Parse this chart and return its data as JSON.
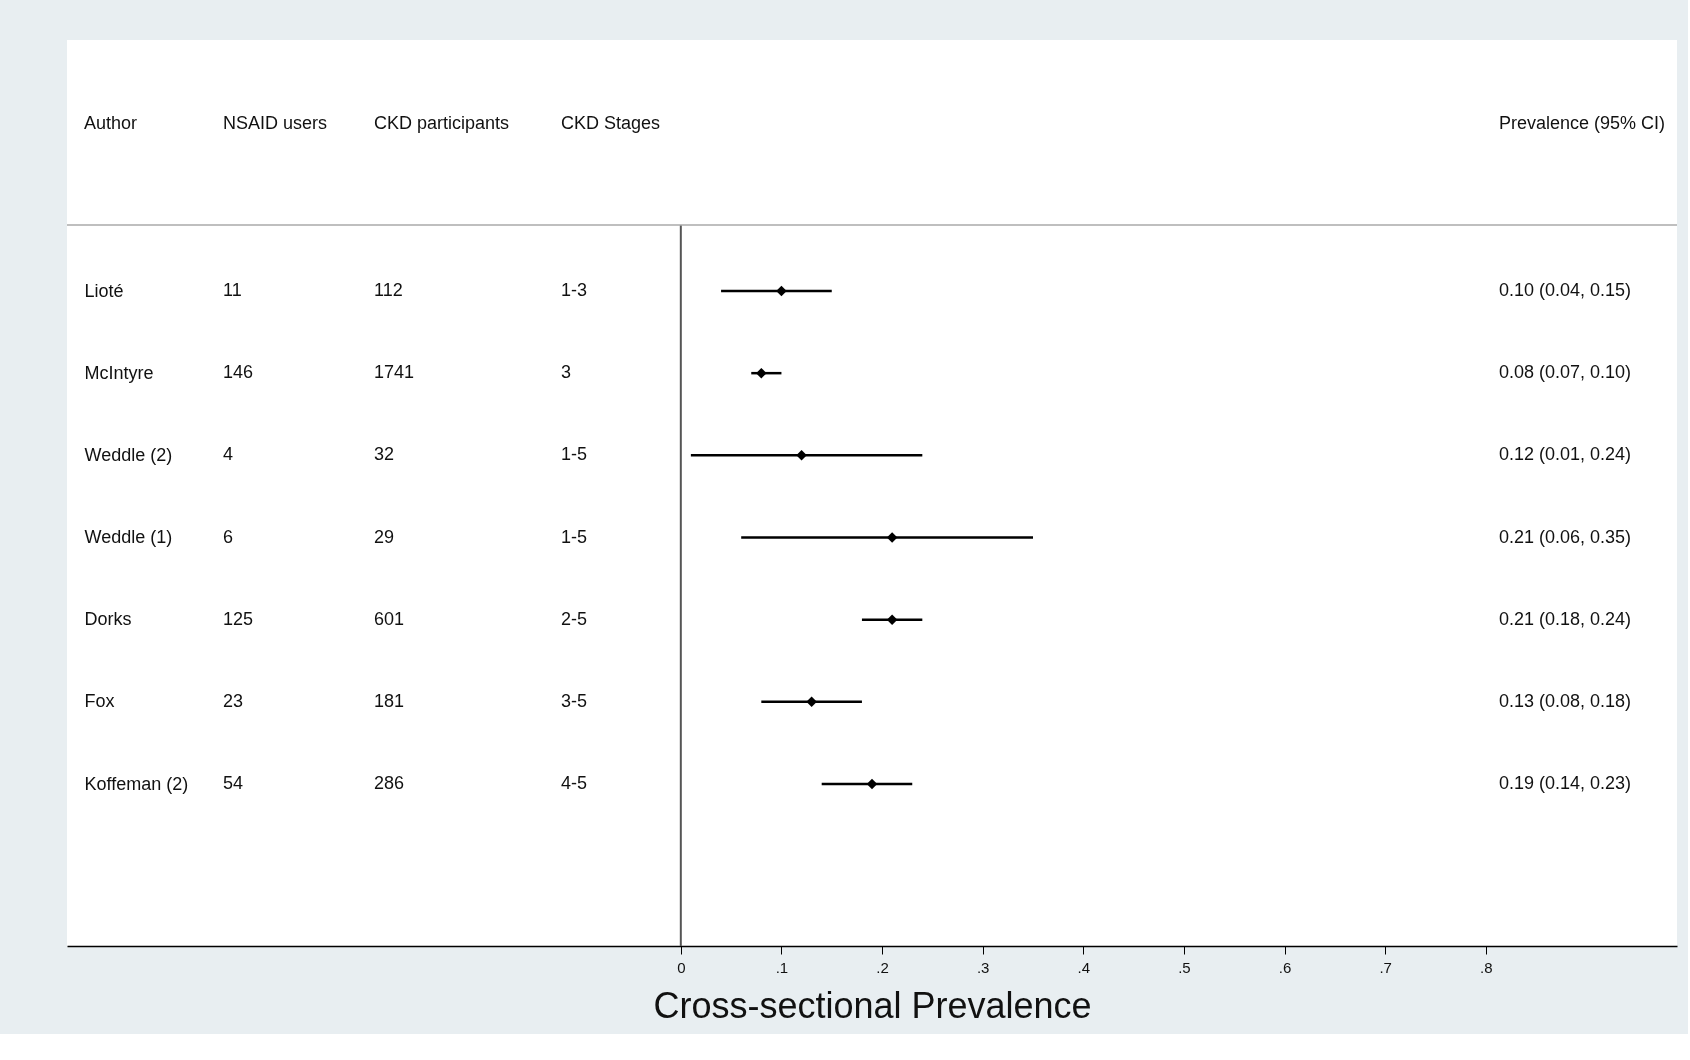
{
  "chart_data": {
    "type": "scatter",
    "orientation": "horizontal",
    "xlabel": "Cross-sectional Prevalence",
    "categories": [
      "Lioté",
      "McIntyre",
      "Weddle (2)",
      "Weddle (1)",
      "Dorks",
      "Fox",
      "Koffeman (2)"
    ],
    "values": [
      0.1,
      0.08,
      0.12,
      0.21,
      0.21,
      0.13,
      0.19
    ],
    "errors": [
      [
        0.04,
        0.15
      ],
      [
        0.07,
        0.1
      ],
      [
        0.01,
        0.24
      ],
      [
        0.06,
        0.35
      ],
      [
        0.18,
        0.24
      ],
      [
        0.08,
        0.18
      ],
      [
        0.14,
        0.23
      ]
    ],
    "color": "#000000",
    "marker": "diamond",
    "xlim": [
      -0.61,
      0.99
    ],
    "xticks": [
      0,
      {
        "value": 0.1,
        "label": ".1"
      },
      {
        "value": 0.2,
        "label": ".2"
      },
      {
        "value": 0.3,
        "label": ".3"
      },
      {
        "value": 0.4,
        "label": ".4"
      },
      {
        "value": 0.5,
        "label": ".5"
      },
      {
        "value": 0.6,
        "label": ".6"
      },
      {
        "value": 0.7,
        "label": ".7"
      },
      {
        "value": 0.8,
        "label": ".8"
      }
    ],
    "ref_lines": [
      {
        "axis": "x",
        "value": 0,
        "color": "#555555"
      }
    ],
    "annotations": [
      "Author",
      "NSAID users",
      "CKD participants",
      "CKD Stages",
      "Prevalence (95% CI)",
      "11",
      "112",
      "1-3",
      "0.10 (0.04, 0.15)",
      "146",
      "1741",
      "3",
      "0.08 (0.07, 0.10)",
      "4",
      "32",
      "1-5",
      "0.12 (0.01, 0.24)",
      "6",
      "29",
      "1-5",
      "0.21 (0.06, 0.35)",
      "125",
      "601",
      "2-5",
      "0.21 (0.18, 0.24)",
      "23",
      "181",
      "3-5",
      "0.13 (0.08, 0.18)",
      "54",
      "286",
      "4-5",
      "0.19 (0.14, 0.23)"
    ]
  }
}
